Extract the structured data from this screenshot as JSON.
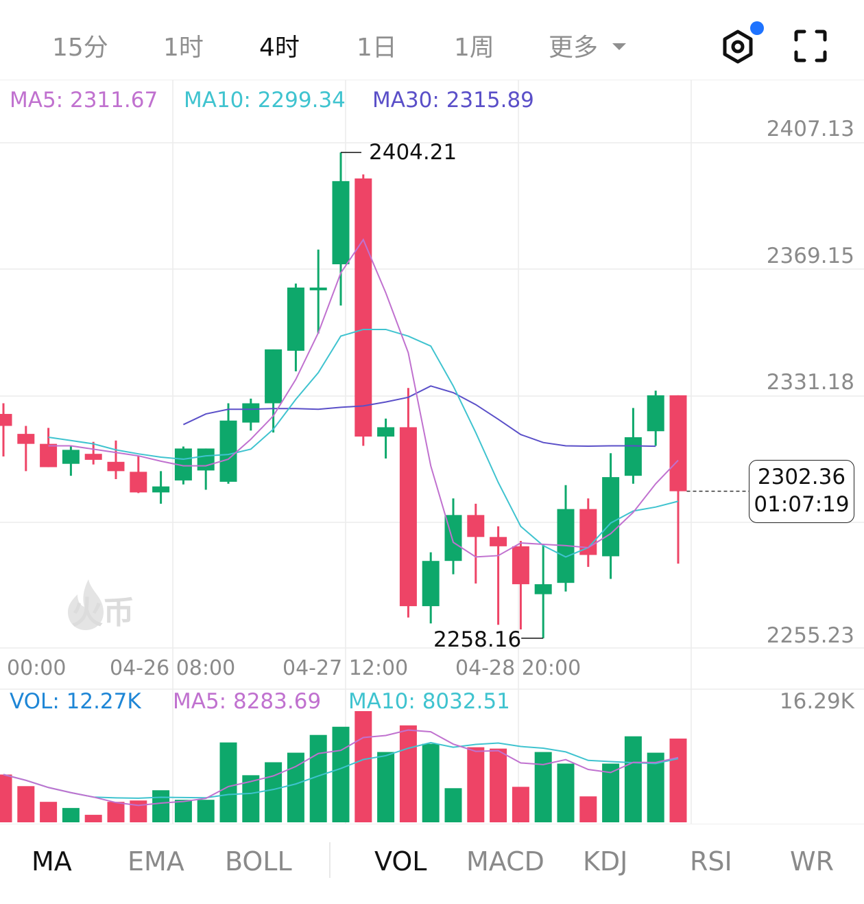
{
  "timeframes": [
    {
      "label": "15分"
    },
    {
      "label": "1时"
    },
    {
      "label": "4时"
    },
    {
      "label": "1日"
    },
    {
      "label": "1周"
    },
    {
      "label": "更多"
    }
  ],
  "active_timeframe": "4时",
  "icons": {
    "settings": "settings-hex-icon",
    "fullscreen": "fullscreen-icon",
    "dropdown": "caret-down-icon",
    "watermark": "flame-logo-icon"
  },
  "ma_legend": {
    "ma5": "MA5: 2311.67",
    "ma10": "MA10: 2299.34",
    "ma30": "MA30: 2315.89"
  },
  "price_axis": {
    "p1": "2407.13",
    "p2": "2369.15",
    "p3": "2331.18",
    "p4": "2255.23"
  },
  "time_axis": {
    "t1": "00:00",
    "t2": "04-26 08:00",
    "t3": "04-27 12:00",
    "t4": "04-28 20:00"
  },
  "high_marker": "2404.21",
  "low_marker": "2258.16",
  "current_price": "2302.36",
  "countdown": "01:07:19",
  "watermark_text": "火币",
  "volume_legend": {
    "vol": "VOL: 12.27K",
    "ma5": "MA5: 8283.69",
    "ma10": "MA10: 8032.51",
    "max": "16.29K"
  },
  "indicator_tabs": {
    "main": [
      "MA",
      "EMA",
      "BOLL"
    ],
    "sub": [
      "VOL",
      "MACD",
      "KDJ",
      "RSI",
      "WR"
    ],
    "active_main": "MA",
    "active_sub": "VOL"
  },
  "colors": {
    "up": "#0ea86b",
    "down": "#ee4466",
    "ma5": "#c071cf",
    "ma10": "#3fc3cf",
    "ma30": "#5a4fc8",
    "vol_label": "#1e86d6"
  },
  "chart_data": {
    "type": "candlestick",
    "price_range": [
      2255.23,
      2407.13
    ],
    "candles": [
      {
        "o": 2325.6,
        "h": 2328.8,
        "l": 2312.8,
        "c": 2322.0
      },
      {
        "o": 2319.6,
        "h": 2322.0,
        "l": 2308.4,
        "c": 2316.6
      },
      {
        "o": 2316.6,
        "h": 2321.4,
        "l": 2309.6,
        "c": 2309.6
      },
      {
        "o": 2310.6,
        "h": 2316.0,
        "l": 2307.0,
        "c": 2314.8
      },
      {
        "o": 2313.6,
        "h": 2317.2,
        "l": 2310.4,
        "c": 2311.8
      },
      {
        "o": 2311.2,
        "h": 2317.6,
        "l": 2306.0,
        "c": 2308.4
      },
      {
        "o": 2308.2,
        "h": 2313.0,
        "l": 2301.8,
        "c": 2302.0
      },
      {
        "o": 2302.0,
        "h": 2308.4,
        "l": 2298.6,
        "c": 2303.8
      },
      {
        "o": 2305.6,
        "h": 2315.8,
        "l": 2304.4,
        "c": 2315.2
      },
      {
        "o": 2308.6,
        "h": 2315.2,
        "l": 2302.8,
        "c": 2315.2
      },
      {
        "o": 2305.2,
        "h": 2328.8,
        "l": 2304.6,
        "c": 2323.6
      },
      {
        "o": 2323.0,
        "h": 2330.2,
        "l": 2320.6,
        "c": 2328.8
      },
      {
        "o": 2328.8,
        "h": 2345.0,
        "l": 2320.0,
        "c": 2345.0
      },
      {
        "o": 2344.6,
        "h": 2364.8,
        "l": 2338.4,
        "c": 2363.6
      },
      {
        "o": 2363.0,
        "h": 2375.0,
        "l": 2349.8,
        "c": 2363.6
      },
      {
        "o": 2370.6,
        "h": 2404.21,
        "l": 2358.2,
        "c": 2395.6
      },
      {
        "o": 2396.4,
        "h": 2397.6,
        "l": 2316.0,
        "c": 2318.8
      },
      {
        "o": 2318.8,
        "h": 2324.2,
        "l": 2312.2,
        "c": 2321.6
      },
      {
        "o": 2321.6,
        "h": 2333.4,
        "l": 2264.4,
        "c": 2267.8
      },
      {
        "o": 2267.8,
        "h": 2284.0,
        "l": 2262.6,
        "c": 2281.4
      },
      {
        "o": 2281.4,
        "h": 2300.2,
        "l": 2277.4,
        "c": 2295.2
      },
      {
        "o": 2295.2,
        "h": 2298.6,
        "l": 2274.6,
        "c": 2288.6
      },
      {
        "o": 2288.6,
        "h": 2291.8,
        "l": 2262.2,
        "c": 2285.8
      },
      {
        "o": 2285.8,
        "h": 2287.4,
        "l": 2260.8,
        "c": 2274.4
      },
      {
        "o": 2271.4,
        "h": 2286.4,
        "l": 2258.16,
        "c": 2274.4
      },
      {
        "o": 2274.8,
        "h": 2304.2,
        "l": 2272.2,
        "c": 2297.0
      },
      {
        "o": 2297.0,
        "h": 2300.2,
        "l": 2279.6,
        "c": 2283.2
      },
      {
        "o": 2282.8,
        "h": 2313.8,
        "l": 2276.0,
        "c": 2306.6
      },
      {
        "o": 2307.0,
        "h": 2327.4,
        "l": 2304.6,
        "c": 2318.6
      },
      {
        "o": 2320.4,
        "h": 2332.6,
        "l": 2316.0,
        "c": 2331.2
      },
      {
        "o": 2331.2,
        "h": 2331.2,
        "l": 2280.6,
        "c": 2302.36
      }
    ],
    "ma5": [
      2316.0,
      2316.0,
      2315.0,
      2314.0,
      2313.0,
      2311.4,
      2310.0,
      2310.0,
      2312.0,
      2318.0,
      2325.0,
      2336.0,
      2350.0,
      2368.0,
      2378.0,
      2362.0,
      2344.0,
      2310.0,
      2287.0,
      2282.6,
      2283.0,
      2286.8,
      2286.4,
      2286.0,
      2285.4,
      2289.6,
      2296.0,
      2304.6,
      2311.67
    ],
    "ma10": [
      2318.6,
      2317.6,
      2316.6,
      2314.8,
      2313.6,
      2312.6,
      2312.0,
      2313.0,
      2313.4,
      2315.0,
      2321.0,
      2330.0,
      2338.0,
      2349.0,
      2351.0,
      2351.0,
      2349.0,
      2346.0,
      2334.0,
      2320.0,
      2305.0,
      2291.8,
      2286.0,
      2282.6,
      2285.4,
      2292.8,
      2296.4,
      2297.6,
      2299.34
    ],
    "ma30": [
      2322.4,
      2325.6,
      2327.0,
      2327.0,
      2327.2,
      2327.2,
      2327.0,
      2327.6,
      2328.0,
      2329.2,
      2330.6,
      2334.0,
      2332.0,
      2328.4,
      2324.0,
      2319.4,
      2317.0,
      2316.0,
      2315.9,
      2316.0,
      2316.0,
      2315.89
    ],
    "volume": {
      "max": "16.29K",
      "bars": [
        7000,
        5300,
        3000,
        2100,
        1100,
        3000,
        3200,
        4700,
        3300,
        3300,
        11700,
        6900,
        8800,
        10200,
        12800,
        14000,
        16290,
        10300,
        14200,
        11500,
        5000,
        11000,
        10800,
        5200,
        10300,
        8600,
        3800,
        8600,
        12600,
        10200,
        12270
      ]
    }
  }
}
